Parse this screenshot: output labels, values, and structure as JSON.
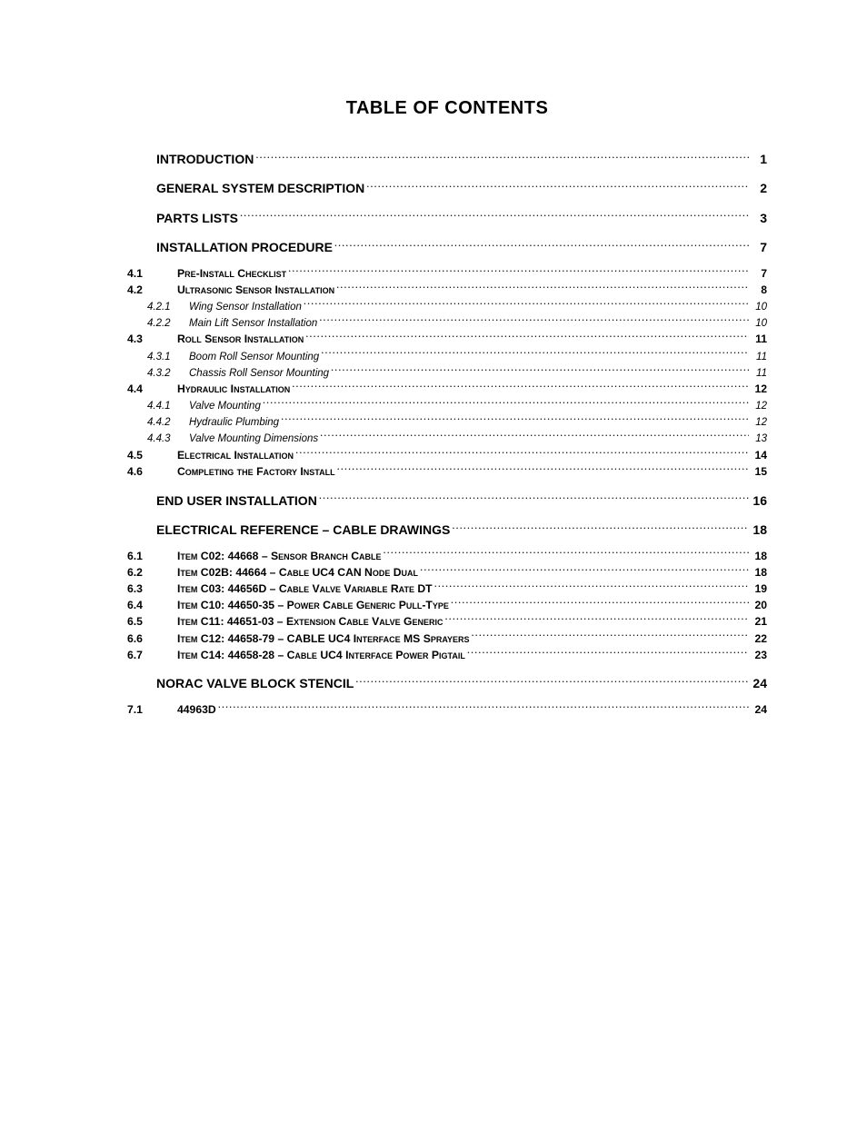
{
  "title": "TABLE OF CONTENTS",
  "toc": [
    {
      "level": 1,
      "num": "",
      "label": "INTRODUCTION",
      "page": "1"
    },
    {
      "level": 1,
      "num": "",
      "label": "GENERAL SYSTEM DESCRIPTION",
      "page": "2"
    },
    {
      "level": 1,
      "num": "",
      "label": "PARTS LISTS",
      "page": "3"
    },
    {
      "level": 1,
      "num": "",
      "label": "INSTALLATION PROCEDURE",
      "page": "7"
    },
    {
      "level": 2,
      "num": "4.1",
      "label": "Pre-Install Checklist",
      "page": "7",
      "gapTop": true
    },
    {
      "level": 2,
      "num": "4.2",
      "label": "Ultrasonic Sensor Installation",
      "page": "8"
    },
    {
      "level": 3,
      "num": "4.2.1",
      "label": "Wing Sensor Installation",
      "page": "10"
    },
    {
      "level": 3,
      "num": "4.2.2",
      "label": "Main Lift Sensor Installation",
      "page": "10"
    },
    {
      "level": 2,
      "num": "4.3",
      "label": "Roll Sensor Installation",
      "page": "11"
    },
    {
      "level": 3,
      "num": "4.3.1",
      "label": "Boom Roll Sensor Mounting",
      "page": "11"
    },
    {
      "level": 3,
      "num": "4.3.2",
      "label": "Chassis Roll Sensor Mounting",
      "page": "11"
    },
    {
      "level": 2,
      "num": "4.4",
      "label": "Hydraulic Installation",
      "page": "12"
    },
    {
      "level": 3,
      "num": "4.4.1",
      "label": "Valve Mounting",
      "page": "12"
    },
    {
      "level": 3,
      "num": "4.4.2",
      "label": "Hydraulic Plumbing",
      "page": "12"
    },
    {
      "level": 3,
      "num": "4.4.3",
      "label": "Valve Mounting Dimensions",
      "page": "13"
    },
    {
      "level": 2,
      "num": "4.5",
      "label": "Electrical Installation",
      "page": "14"
    },
    {
      "level": 2,
      "num": "4.6",
      "label": "Completing the Factory Install",
      "page": "15"
    },
    {
      "level": 1,
      "num": "",
      "label": "END USER INSTALLATION",
      "page": "16"
    },
    {
      "level": 1,
      "num": "",
      "label": "ELECTRICAL REFERENCE – CABLE DRAWINGS",
      "page": "18"
    },
    {
      "level": 2,
      "num": "6.1",
      "label": "Item C02: 44668 – Sensor Branch Cable",
      "page": "18",
      "gapTop": true
    },
    {
      "level": 2,
      "num": "6.2",
      "label": "Item C02B: 44664 – Cable UC4 CAN Node Dual",
      "page": "18"
    },
    {
      "level": 2,
      "num": "6.3",
      "label": "Item C03: 44656D – Cable Valve Variable Rate DT",
      "page": "19"
    },
    {
      "level": 2,
      "num": "6.4",
      "label": "Item C10: 44650-35 – Power Cable Generic Pull-Type",
      "page": "20"
    },
    {
      "level": 2,
      "num": "6.5",
      "label": "Item C11: 44651-03 – Extension Cable Valve Generic",
      "page": "21"
    },
    {
      "level": 2,
      "num": "6.6",
      "label": "Item C12: 44658-79 – CABLE UC4 Interface MS Sprayers",
      "page": "22"
    },
    {
      "level": 2,
      "num": "6.7",
      "label": "Item C14: 44658-28 – Cable UC4 Interface Power Pigtail",
      "page": "23"
    },
    {
      "level": 1,
      "num": "",
      "label": "NORAC VALVE BLOCK STENCIL",
      "page": "24"
    },
    {
      "level": 2,
      "num": "7.1",
      "label": "44963D",
      "page": "24",
      "gapTop": true
    }
  ]
}
